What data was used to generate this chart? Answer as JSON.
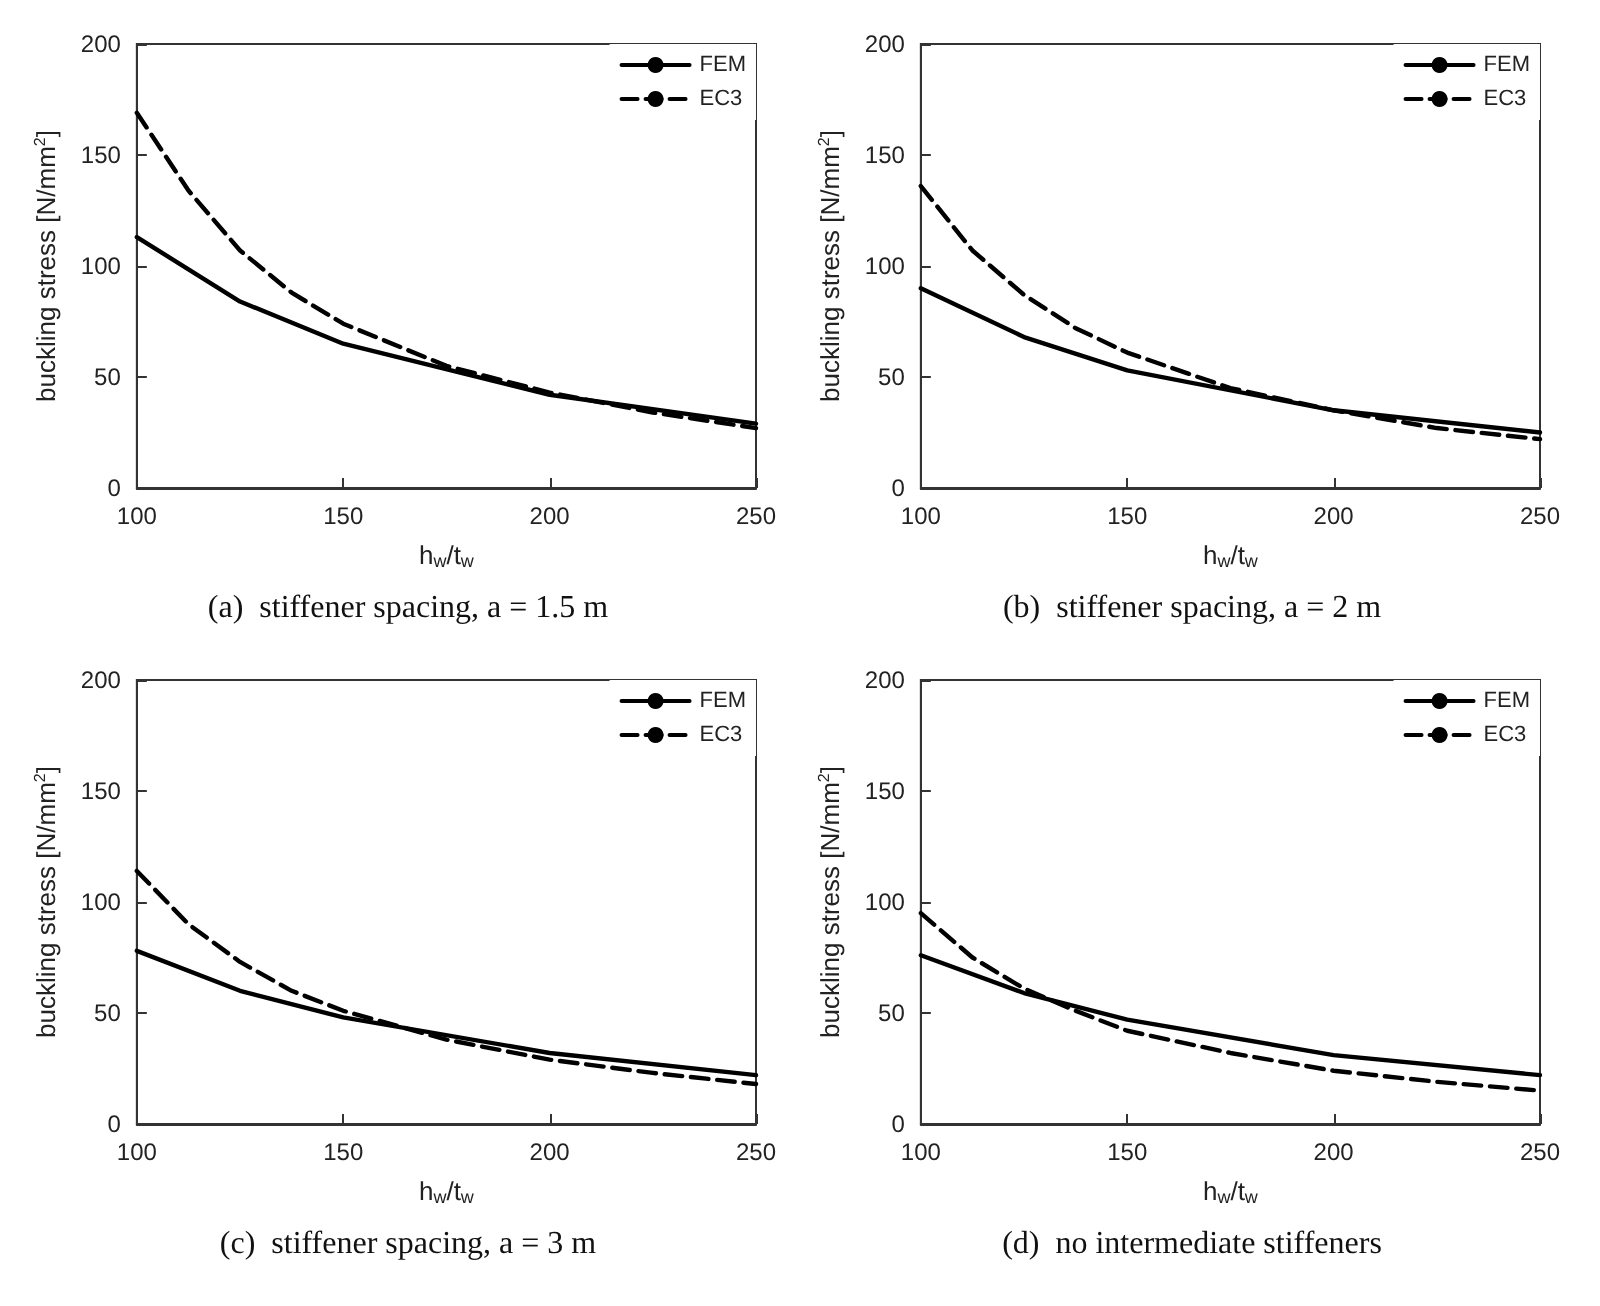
{
  "chart_data": [
    {
      "type": "line",
      "xlabel": "h$_{w}$/t$_{w}$",
      "ylabel": "buckling stress [N/mm$^{2}$]",
      "annotations": [
        "(a)  stiffener spacing, a = 1.5 m"
      ],
      "xlim": [
        100,
        250
      ],
      "xticks": [
        100,
        150,
        200,
        250
      ],
      "ylim": [
        0,
        200
      ],
      "yticks": [
        0,
        50,
        100,
        150,
        200
      ],
      "grid": false,
      "legend": "top right",
      "marker": "none",
      "series": [
        {
          "name": "FEM",
          "color": "#000000",
          "line_style": "solid",
          "x": [
            100,
            125,
            150,
            200,
            250
          ],
          "values": [
            113,
            84,
            65,
            42,
            29
          ]
        },
        {
          "name": "EC3",
          "color": "#000000",
          "line_style": "dashed",
          "x": [
            100,
            112.5,
            125,
            137.5,
            150,
            175,
            200,
            225,
            250
          ],
          "values": [
            169,
            134,
            107,
            88,
            74,
            55,
            43,
            34,
            27
          ]
        }
      ]
    },
    {
      "type": "line",
      "xlabel": "h$_{w}$/t$_{w}$",
      "ylabel": "buckling stress [N/mm$^{2}$]",
      "annotations": [
        "(b)  stiffener spacing, a = 2 m"
      ],
      "xlim": [
        100,
        250
      ],
      "xticks": [
        100,
        150,
        200,
        250
      ],
      "ylim": [
        0,
        200
      ],
      "yticks": [
        0,
        50,
        100,
        150,
        200
      ],
      "grid": false,
      "legend": "top right",
      "marker": "none",
      "series": [
        {
          "name": "FEM",
          "color": "#000000",
          "line_style": "solid",
          "x": [
            100,
            125,
            150,
            200,
            250
          ],
          "values": [
            90,
            68,
            53,
            35,
            25
          ]
        },
        {
          "name": "EC3",
          "color": "#000000",
          "line_style": "dashed",
          "x": [
            100,
            112.5,
            125,
            137.5,
            150,
            175,
            200,
            225,
            250
          ],
          "values": [
            136,
            107,
            87,
            72,
            61,
            45,
            35,
            27,
            22
          ]
        }
      ]
    },
    {
      "type": "line",
      "xlabel": "h$_{w}$/t$_{w}$",
      "ylabel": "buckling stress [N/mm$^{2}$]",
      "annotations": [
        "(c)  stiffener spacing, a = 3 m"
      ],
      "xlim": [
        100,
        250
      ],
      "xticks": [
        100,
        150,
        200,
        250
      ],
      "ylim": [
        0,
        200
      ],
      "yticks": [
        0,
        50,
        100,
        150,
        200
      ],
      "grid": false,
      "legend": "top right",
      "marker": "none",
      "series": [
        {
          "name": "FEM",
          "color": "#000000",
          "line_style": "solid",
          "x": [
            100,
            125,
            150,
            200,
            250
          ],
          "values": [
            78,
            60,
            48,
            32,
            22
          ]
        },
        {
          "name": "EC3",
          "color": "#000000",
          "line_style": "dashed",
          "x": [
            100,
            112.5,
            125,
            137.5,
            150,
            175,
            200,
            225,
            250
          ],
          "values": [
            114,
            90,
            73,
            60,
            51,
            38,
            29,
            23,
            18
          ]
        }
      ]
    },
    {
      "type": "line",
      "xlabel": "h$_{w}$/t$_{w}$",
      "ylabel": "buckling stress [N/mm$^{2}$]",
      "annotations": [
        "(d)  no intermediate stiffeners"
      ],
      "xlim": [
        100,
        250
      ],
      "xticks": [
        100,
        150,
        200,
        250
      ],
      "ylim": [
        0,
        200
      ],
      "yticks": [
        0,
        50,
        100,
        150,
        200
      ],
      "grid": false,
      "legend": "top right",
      "marker": "none",
      "series": [
        {
          "name": "FEM",
          "color": "#000000",
          "line_style": "solid",
          "x": [
            100,
            125,
            150,
            200,
            250
          ],
          "values": [
            76,
            59,
            47,
            31,
            22
          ]
        },
        {
          "name": "EC3",
          "color": "#000000",
          "line_style": "dashed",
          "x": [
            100,
            112.5,
            125,
            137.5,
            150,
            175,
            200,
            225,
            250
          ],
          "values": [
            95,
            75,
            61,
            51,
            42,
            32,
            24,
            19,
            15
          ]
        }
      ]
    }
  ]
}
